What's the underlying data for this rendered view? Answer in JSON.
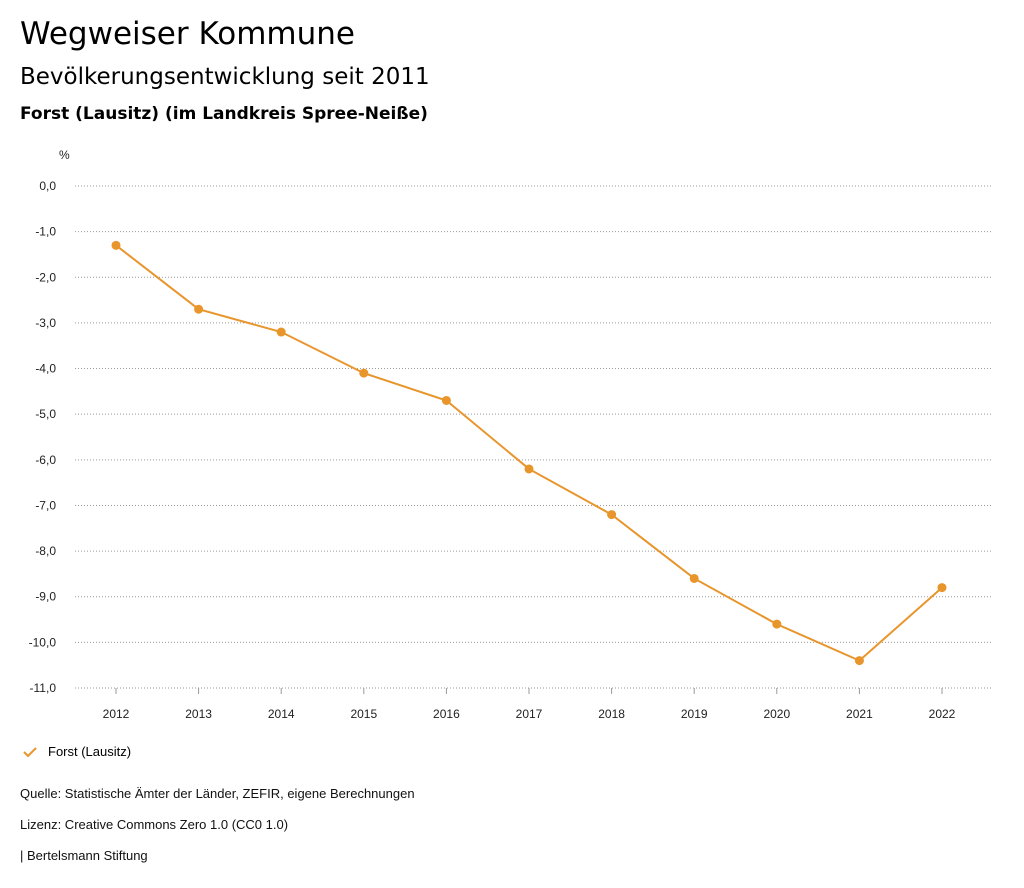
{
  "header": {
    "title": "Wegweiser Kommune",
    "subtitle": "Bevölkerungsentwicklung seit 2011",
    "region": "Forst (Lausitz) (im Landkreis Spree-Neiße)"
  },
  "chart_data": {
    "type": "line",
    "ylabel": "%",
    "ylim": [
      -11,
      0
    ],
    "yticks": [
      "0,0",
      "-1,0",
      "-2,0",
      "-3,0",
      "-4,0",
      "-5,0",
      "-6,0",
      "-7,0",
      "-8,0",
      "-9,0",
      "-10,0",
      "-11,0"
    ],
    "ytick_values": [
      0,
      -1,
      -2,
      -3,
      -4,
      -5,
      -6,
      -7,
      -8,
      -9,
      -10,
      -11
    ],
    "categories": [
      "2012",
      "2013",
      "2014",
      "2015",
      "2016",
      "2017",
      "2018",
      "2019",
      "2020",
      "2021",
      "2022"
    ],
    "series": [
      {
        "name": "Forst (Lausitz)",
        "color": "#E8952B",
        "values": [
          -1.3,
          -2.7,
          -3.2,
          -4.1,
          -4.7,
          -6.2,
          -7.2,
          -8.6,
          -9.6,
          -10.4,
          -8.8
        ]
      }
    ],
    "grid": true,
    "legend": "bottom-left"
  },
  "footer": {
    "source": "Quelle: Statistische Ämter der Länder, ZEFIR, eigene Berechnungen",
    "license": "Lizenz: Creative Commons Zero 1.0 (CC0 1.0)",
    "publisher": "| Bertelsmann Stiftung"
  },
  "legend_icon": "check-icon"
}
